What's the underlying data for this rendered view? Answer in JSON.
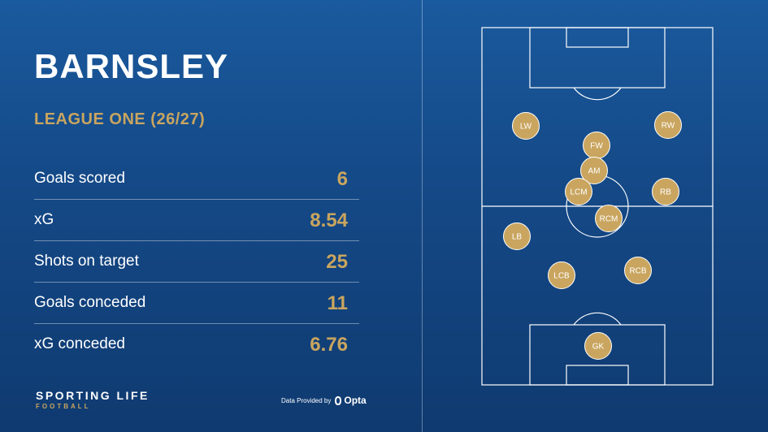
{
  "team": {
    "name": "BARNSLEY",
    "competition": "LEAGUE ONE (26/27)"
  },
  "stats": [
    {
      "label": "Goals scored",
      "value": "6"
    },
    {
      "label": "xG",
      "value": "8.54"
    },
    {
      "label": "Shots on target",
      "value": "25"
    },
    {
      "label": "Goals conceded",
      "value": "11"
    },
    {
      "label": "xG conceded",
      "value": "6.76"
    }
  ],
  "brand": {
    "main": "SPORTING LIFE",
    "sub": "FOOTBALL"
  },
  "credit": {
    "text": "Data Provided by",
    "provider": "Opta"
  },
  "formation": {
    "players": [
      {
        "label": "LW"
      },
      {
        "label": "RW"
      },
      {
        "label": "FW"
      },
      {
        "label": "AM"
      },
      {
        "label": "LCM"
      },
      {
        "label": "RB"
      },
      {
        "label": "RCM"
      },
      {
        "label": "LB"
      },
      {
        "label": "LCB"
      },
      {
        "label": "RCB"
      },
      {
        "label": "GK"
      }
    ]
  },
  "colors": {
    "gold": "#c9a55f",
    "background": "#154a88",
    "pitch_lines": "#ffffff"
  }
}
